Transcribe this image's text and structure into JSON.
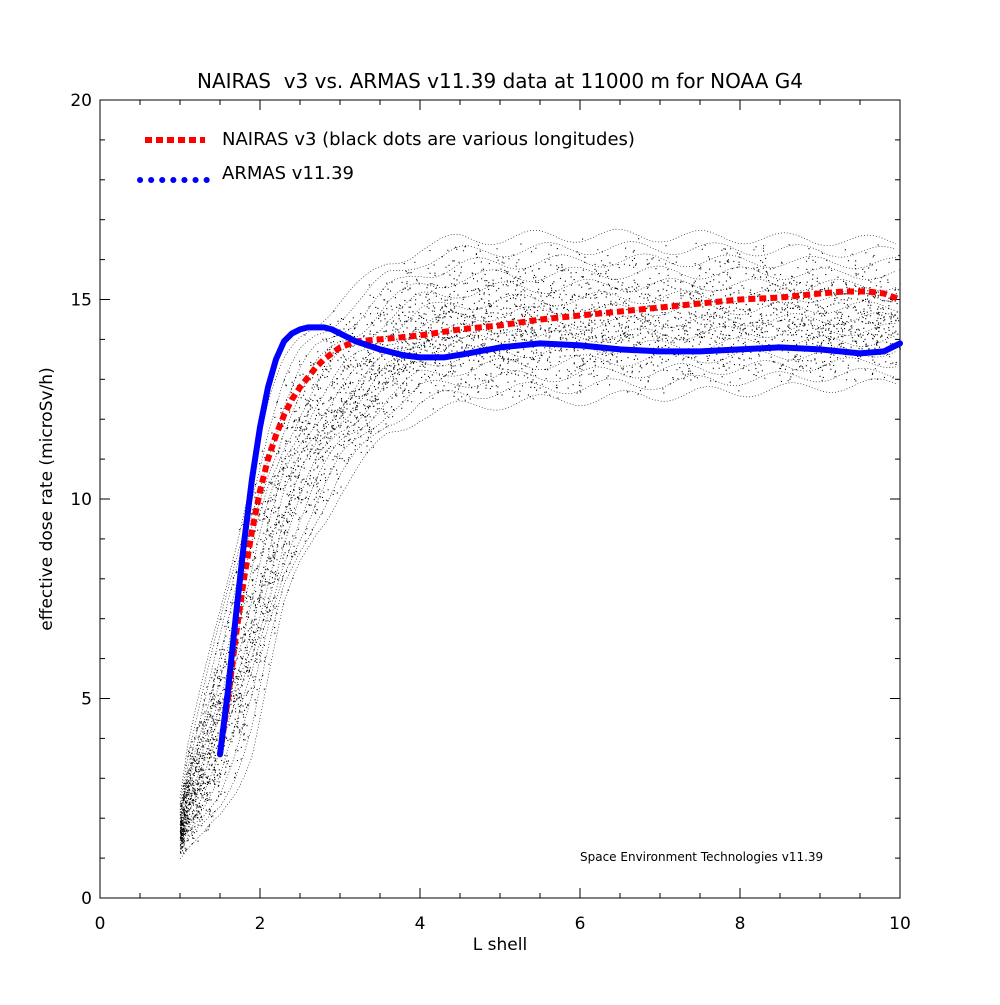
{
  "chart_data": {
    "type": "line",
    "title": "NAIRAS  v3 vs. ARMAS v11.39 data at 11000 m for NOAA G4",
    "xlabel": "L shell",
    "ylabel": "effective dose rate (microSv/h)",
    "xlim": [
      0,
      10
    ],
    "ylim": [
      0,
      20
    ],
    "x_ticks": [
      "0",
      "2",
      "4",
      "6",
      "8",
      "10"
    ],
    "y_ticks": [
      "0",
      "5",
      "10",
      "15",
      "20"
    ],
    "grid": false,
    "legend_placement": "top-left",
    "annotation": "Space Environment Technologies v11.39",
    "series": [
      {
        "name": "NAIRAS v3 (black dots are various longitudes)",
        "color": "#ff0000",
        "style": "dashed",
        "x": [
          1.5,
          1.6,
          1.7,
          1.8,
          1.9,
          2.0,
          2.1,
          2.2,
          2.3,
          2.4,
          2.5,
          2.6,
          2.7,
          2.8,
          3.0,
          3.2,
          3.5,
          4.0,
          4.5,
          5.0,
          5.5,
          6.0,
          6.5,
          7.0,
          7.5,
          8.0,
          8.5,
          9.0,
          9.3,
          9.6,
          9.8,
          10.0
        ],
        "y": [
          3.6,
          5.0,
          6.6,
          8.0,
          9.2,
          10.2,
          11.0,
          11.6,
          12.1,
          12.5,
          12.8,
          13.05,
          13.3,
          13.5,
          13.8,
          13.95,
          14.0,
          14.1,
          14.25,
          14.35,
          14.5,
          14.6,
          14.7,
          14.8,
          14.9,
          15.0,
          15.05,
          15.15,
          15.2,
          15.2,
          15.15,
          15.0
        ]
      },
      {
        "name": "ARMAS v11.39",
        "color": "#0000ff",
        "style": "dotted",
        "x": [
          1.5,
          1.6,
          1.7,
          1.8,
          1.9,
          2.0,
          2.1,
          2.2,
          2.3,
          2.4,
          2.5,
          2.6,
          2.7,
          2.8,
          2.9,
          3.0,
          3.2,
          3.5,
          3.8,
          4.0,
          4.3,
          4.6,
          5.0,
          5.5,
          6.0,
          6.5,
          7.0,
          7.5,
          8.0,
          8.5,
          9.0,
          9.5,
          9.8,
          10.0
        ],
        "y": [
          3.6,
          5.2,
          7.1,
          8.9,
          10.5,
          11.8,
          12.8,
          13.5,
          13.95,
          14.15,
          14.25,
          14.3,
          14.3,
          14.3,
          14.25,
          14.15,
          13.95,
          13.75,
          13.6,
          13.55,
          13.55,
          13.65,
          13.8,
          13.9,
          13.85,
          13.75,
          13.7,
          13.7,
          13.75,
          13.8,
          13.75,
          13.65,
          13.7,
          13.9
        ]
      }
    ],
    "background_scatter": {
      "color": "#000000",
      "lower_envelope": {
        "x": [
          1.0,
          1.1,
          1.3,
          1.5,
          1.7,
          1.9,
          2.1,
          2.3,
          2.5,
          2.7,
          3.0,
          3.3,
          3.6,
          4.0,
          4.5,
          5.0,
          6.0,
          7.0,
          8.0,
          9.0,
          10.0
        ],
        "y": [
          1.0,
          1.2,
          1.5,
          2.0,
          2.8,
          3.8,
          5.5,
          7.2,
          8.3,
          9.2,
          10.2,
          10.9,
          11.6,
          12.1,
          12.3,
          12.4,
          12.5,
          12.6,
          12.7,
          12.8,
          12.9
        ]
      },
      "upper_envelope": {
        "x": [
          1.0,
          1.1,
          1.3,
          1.5,
          1.7,
          1.9,
          2.1,
          2.3,
          2.5,
          2.7,
          3.0,
          3.3,
          3.6,
          4.0,
          4.5,
          5.0,
          6.0,
          7.0,
          8.0,
          9.0,
          10.0
        ],
        "y": [
          2.5,
          3.8,
          5.5,
          7.2,
          9.0,
          10.8,
          12.3,
          13.3,
          14.0,
          14.5,
          15.0,
          15.4,
          15.9,
          16.3,
          16.5,
          16.55,
          16.6,
          16.6,
          16.55,
          16.5,
          16.45
        ]
      }
    }
  }
}
